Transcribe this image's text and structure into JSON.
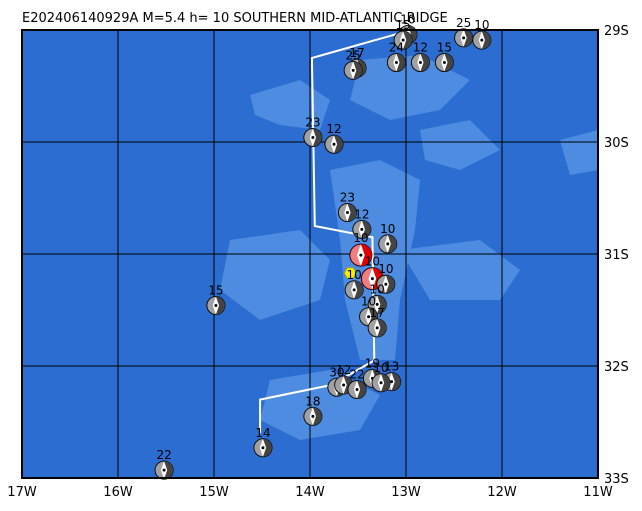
{
  "map": {
    "title": "E202406140929A M=5.4 h= 10 SOUTHERN MID-ATLANTIC RIDGE",
    "lon_range": [
      -17,
      -11
    ],
    "lat_range": [
      -29,
      -33
    ],
    "lon_ticks": [
      {
        "value": -17,
        "label": "17W"
      },
      {
        "value": -16,
        "label": "16W"
      },
      {
        "value": -15,
        "label": "15W"
      },
      {
        "value": -14,
        "label": "14W"
      },
      {
        "value": -13,
        "label": "13W"
      },
      {
        "value": -12,
        "label": "12W"
      },
      {
        "value": -11,
        "label": "11W"
      }
    ],
    "lat_ticks": [
      {
        "value": -29,
        "label": "29S"
      },
      {
        "value": -30,
        "label": "30S"
      },
      {
        "value": -31,
        "label": "31S"
      },
      {
        "value": -32,
        "label": "32S"
      },
      {
        "value": -33,
        "label": "33S"
      }
    ],
    "main_event": {
      "lon": -13.58,
      "lat": -31.17
    },
    "plate_boundary": [
      [
        -13.03,
        -29.02
      ],
      [
        -13.98,
        -29.25
      ],
      [
        -13.95,
        -30.75
      ],
      [
        -13.35,
        -30.85
      ],
      [
        -13.33,
        -31.95
      ],
      [
        -13.78,
        -32.17
      ],
      [
        -14.52,
        -32.3
      ],
      [
        -14.52,
        -32.6
      ]
    ],
    "events": [
      {
        "lon": -12.98,
        "lat": -29.04,
        "depth": "10",
        "color": "#444"
      },
      {
        "lon": -13.03,
        "lat": -29.09,
        "depth": "15",
        "color": "#444"
      },
      {
        "lon": -13.1,
        "lat": -29.29,
        "depth": "24",
        "color": "#444"
      },
      {
        "lon": -12.85,
        "lat": -29.29,
        "depth": "12",
        "color": "#444"
      },
      {
        "lon": -12.6,
        "lat": -29.29,
        "depth": "15",
        "color": "#444"
      },
      {
        "lon": -12.4,
        "lat": -29.07,
        "depth": "25",
        "color": "#444"
      },
      {
        "lon": -12.21,
        "lat": -29.09,
        "depth": "10",
        "color": "#444"
      },
      {
        "lon": -13.51,
        "lat": -29.34,
        "depth": "17",
        "color": "#444"
      },
      {
        "lon": -13.55,
        "lat": -29.36,
        "depth": "25",
        "color": "#444"
      },
      {
        "lon": -13.97,
        "lat": -29.96,
        "depth": "23",
        "color": "#444"
      },
      {
        "lon": -13.75,
        "lat": -30.02,
        "depth": "12",
        "color": "#444"
      },
      {
        "lon": -13.61,
        "lat": -30.63,
        "depth": "23",
        "color": "#444"
      },
      {
        "lon": -13.46,
        "lat": -30.78,
        "depth": "12",
        "color": "#444"
      },
      {
        "lon": -13.19,
        "lat": -30.91,
        "depth": "10",
        "color": "#444"
      },
      {
        "lon": -13.47,
        "lat": -31.01,
        "depth": "10",
        "color": "#e00000"
      },
      {
        "lon": -13.35,
        "lat": -31.22,
        "depth": "10",
        "color": "#e00000"
      },
      {
        "lon": -13.21,
        "lat": -31.27,
        "depth": "10",
        "color": "#444"
      },
      {
        "lon": -13.54,
        "lat": -31.32,
        "depth": "10",
        "color": "#444"
      },
      {
        "lon": -13.3,
        "lat": -31.45,
        "depth": "10",
        "color": "#444"
      },
      {
        "lon": -13.39,
        "lat": -31.56,
        "depth": "10",
        "color": "#444"
      },
      {
        "lon": -13.3,
        "lat": -31.66,
        "depth": "17",
        "color": "#444"
      },
      {
        "lon": -14.98,
        "lat": -31.46,
        "depth": "15",
        "color": "#444"
      },
      {
        "lon": -13.35,
        "lat": -32.11,
        "depth": "19",
        "color": "#444"
      },
      {
        "lon": -13.15,
        "lat": -32.14,
        "depth": "13",
        "color": "#444"
      },
      {
        "lon": -13.72,
        "lat": -32.19,
        "depth": "30",
        "color": "#444"
      },
      {
        "lon": -13.65,
        "lat": -32.17,
        "depth": "12",
        "color": "#444"
      },
      {
        "lon": -13.51,
        "lat": -32.21,
        "depth": "22",
        "color": "#444"
      },
      {
        "lon": -13.26,
        "lat": -32.15,
        "depth": "10",
        "color": "#444"
      },
      {
        "lon": -13.97,
        "lat": -32.45,
        "depth": "18",
        "color": "#444"
      },
      {
        "lon": -14.49,
        "lat": -32.73,
        "depth": "14",
        "color": "#444"
      },
      {
        "lon": -15.52,
        "lat": -32.93,
        "depth": "22",
        "color": "#444"
      }
    ]
  }
}
